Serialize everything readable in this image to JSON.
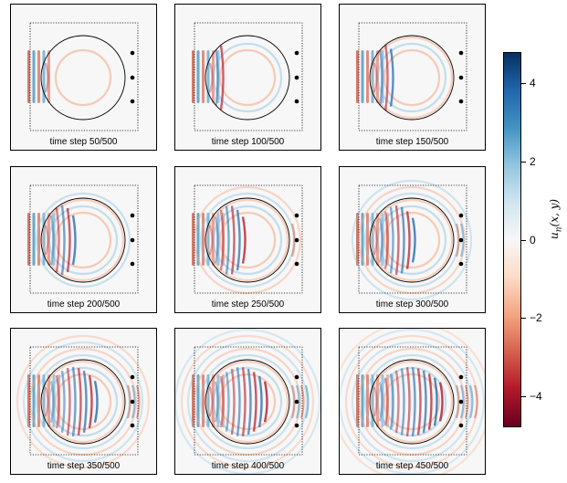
{
  "panels": [
    {
      "label": "time step 50/500",
      "step": 50
    },
    {
      "label": "time step 100/500",
      "step": 100
    },
    {
      "label": "time step 150/500",
      "step": 150
    },
    {
      "label": "time step 200/500",
      "step": 200
    },
    {
      "label": "time step 250/500",
      "step": 250
    },
    {
      "label": "time step 300/500",
      "step": 300
    },
    {
      "label": "time step 350/500",
      "step": 350
    },
    {
      "label": "time step 400/500",
      "step": 400
    },
    {
      "label": "time step 450/500",
      "step": 450
    }
  ],
  "total_steps": 500,
  "colorbar": {
    "label": "u_n(x, y)",
    "min": -4.8,
    "max": 4.8,
    "ticks": [
      {
        "value": 4,
        "label": "4"
      },
      {
        "value": 2,
        "label": "2"
      },
      {
        "value": 0,
        "label": "0"
      },
      {
        "value": -2,
        "label": "−2"
      },
      {
        "value": -4,
        "label": "−4"
      }
    ],
    "colormap": "RdBu",
    "colors": [
      "#67001f",
      "#b2182b",
      "#d6604d",
      "#f4a582",
      "#fddbc7",
      "#f7f7f7",
      "#d1e5f0",
      "#92c5de",
      "#4393c3",
      "#2166ac",
      "#053061"
    ]
  }
}
